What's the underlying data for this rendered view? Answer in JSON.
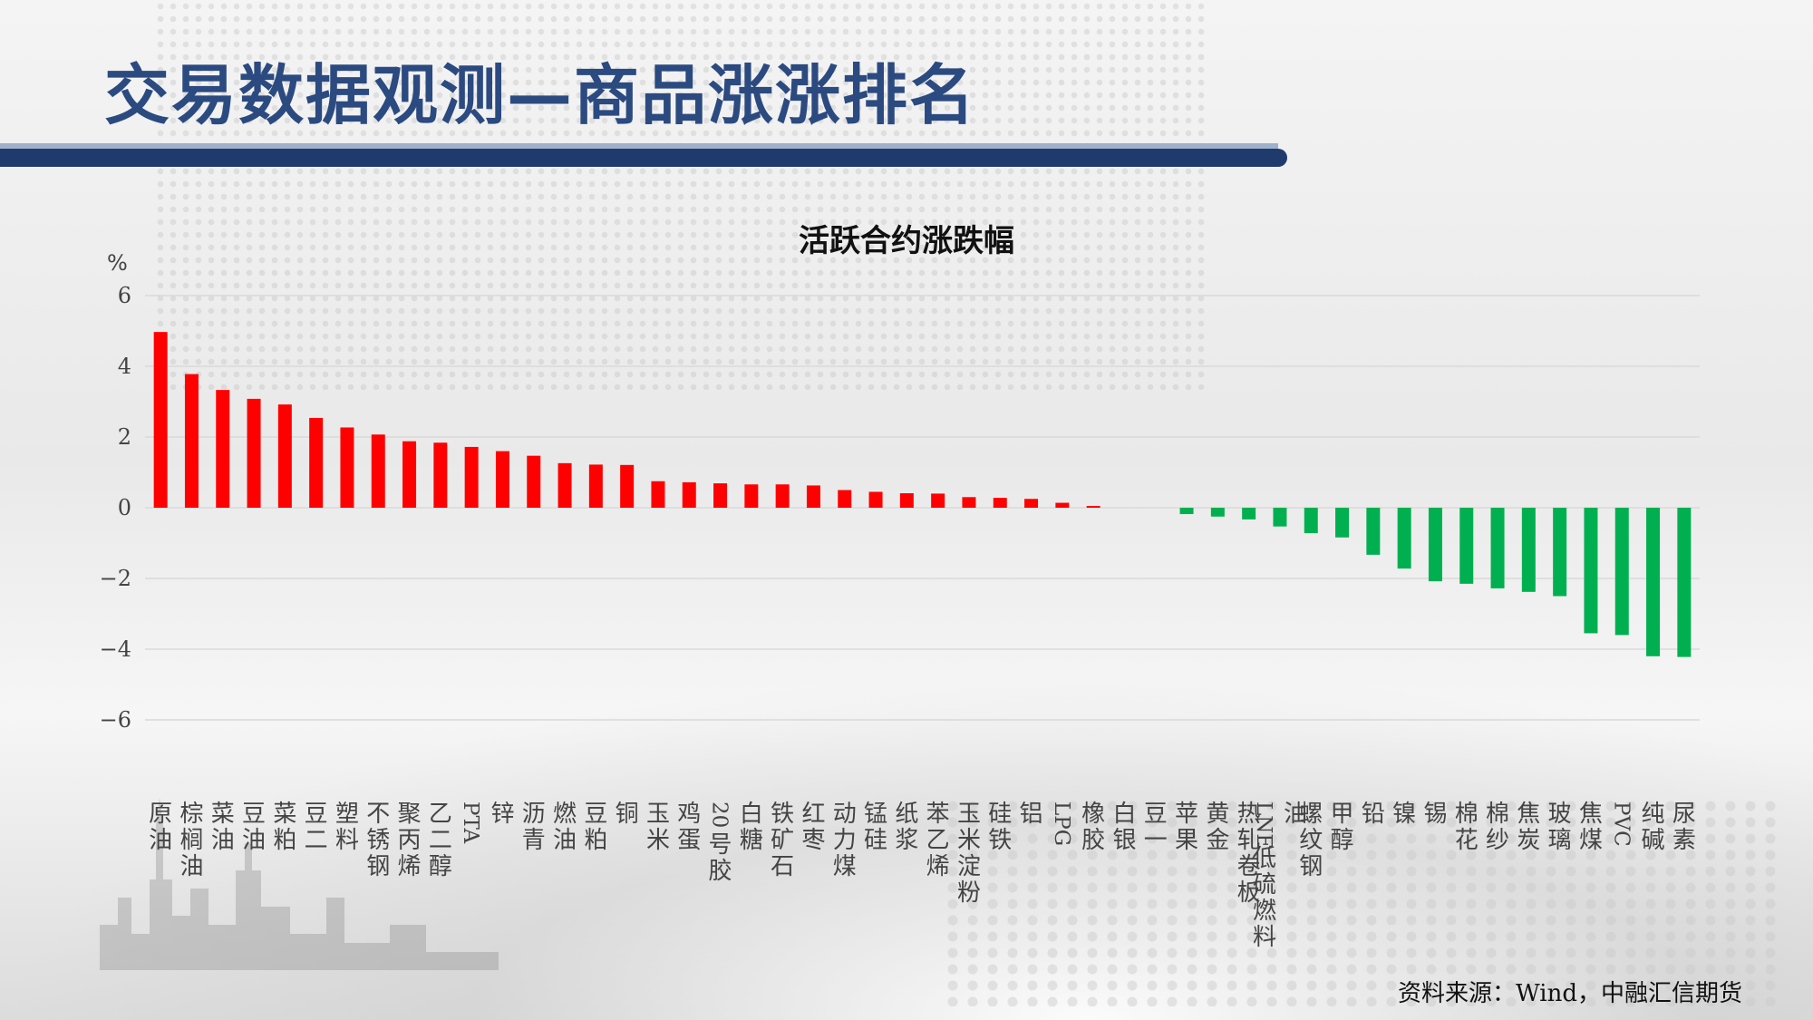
{
  "header": {
    "title": "交易数据观测—商品涨涨排名"
  },
  "source": "资料来源：Wind，中融汇信期货",
  "colors": {
    "positive": "#ff0000",
    "negative": "#00b050",
    "title": "#2b4a80",
    "bar": "#1f3b6e",
    "grid": "#d9d9d9"
  },
  "chart_data": {
    "type": "bar",
    "title": "活跃合约涨跌幅",
    "ylabel": "%",
    "ylim": [
      -6,
      6
    ],
    "yticks": [
      "6",
      "4",
      "2",
      "0",
      "−2",
      "−4",
      "−6"
    ],
    "grid": true,
    "categories": [
      "原油",
      "棕榈油",
      "菜油",
      "豆油",
      "菜粕",
      "豆二",
      "塑料",
      "不锈钢",
      "聚丙烯",
      "乙二醇",
      "PTA",
      "锌",
      "沥青",
      "燃油",
      "豆粕",
      "铜",
      "玉米",
      "鸡蛋",
      "20号胶",
      "白糖",
      "铁矿石",
      "红枣",
      "动力煤",
      "锰硅",
      "纸浆",
      "苯乙烯",
      "玉米淀粉",
      "硅铁",
      "铝",
      "LPG",
      "橡胶",
      "白银",
      "豆一",
      "苹果",
      "黄金",
      "热轧卷板",
      "LNE低硫燃料油",
      "螺纹钢",
      "甲醇",
      "铅",
      "镍",
      "锡",
      "棉花",
      "棉纱",
      "焦炭",
      "玻璃",
      "焦煤",
      "PVC",
      "纯碱",
      "尿素"
    ],
    "values": [
      4.97,
      3.78,
      3.33,
      3.08,
      2.92,
      2.54,
      2.27,
      2.07,
      1.88,
      1.84,
      1.72,
      1.6,
      1.47,
      1.26,
      1.22,
      1.21,
      0.75,
      0.72,
      0.69,
      0.66,
      0.66,
      0.63,
      0.5,
      0.45,
      0.41,
      0.4,
      0.3,
      0.28,
      0.25,
      0.14,
      0.05,
      0.0,
      0.0,
      -0.18,
      -0.25,
      -0.33,
      -0.53,
      -0.72,
      -0.84,
      -1.33,
      -1.72,
      -2.08,
      -2.15,
      -2.28,
      -2.38,
      -2.5,
      -3.55,
      -3.6,
      -4.2,
      -4.22
    ]
  }
}
